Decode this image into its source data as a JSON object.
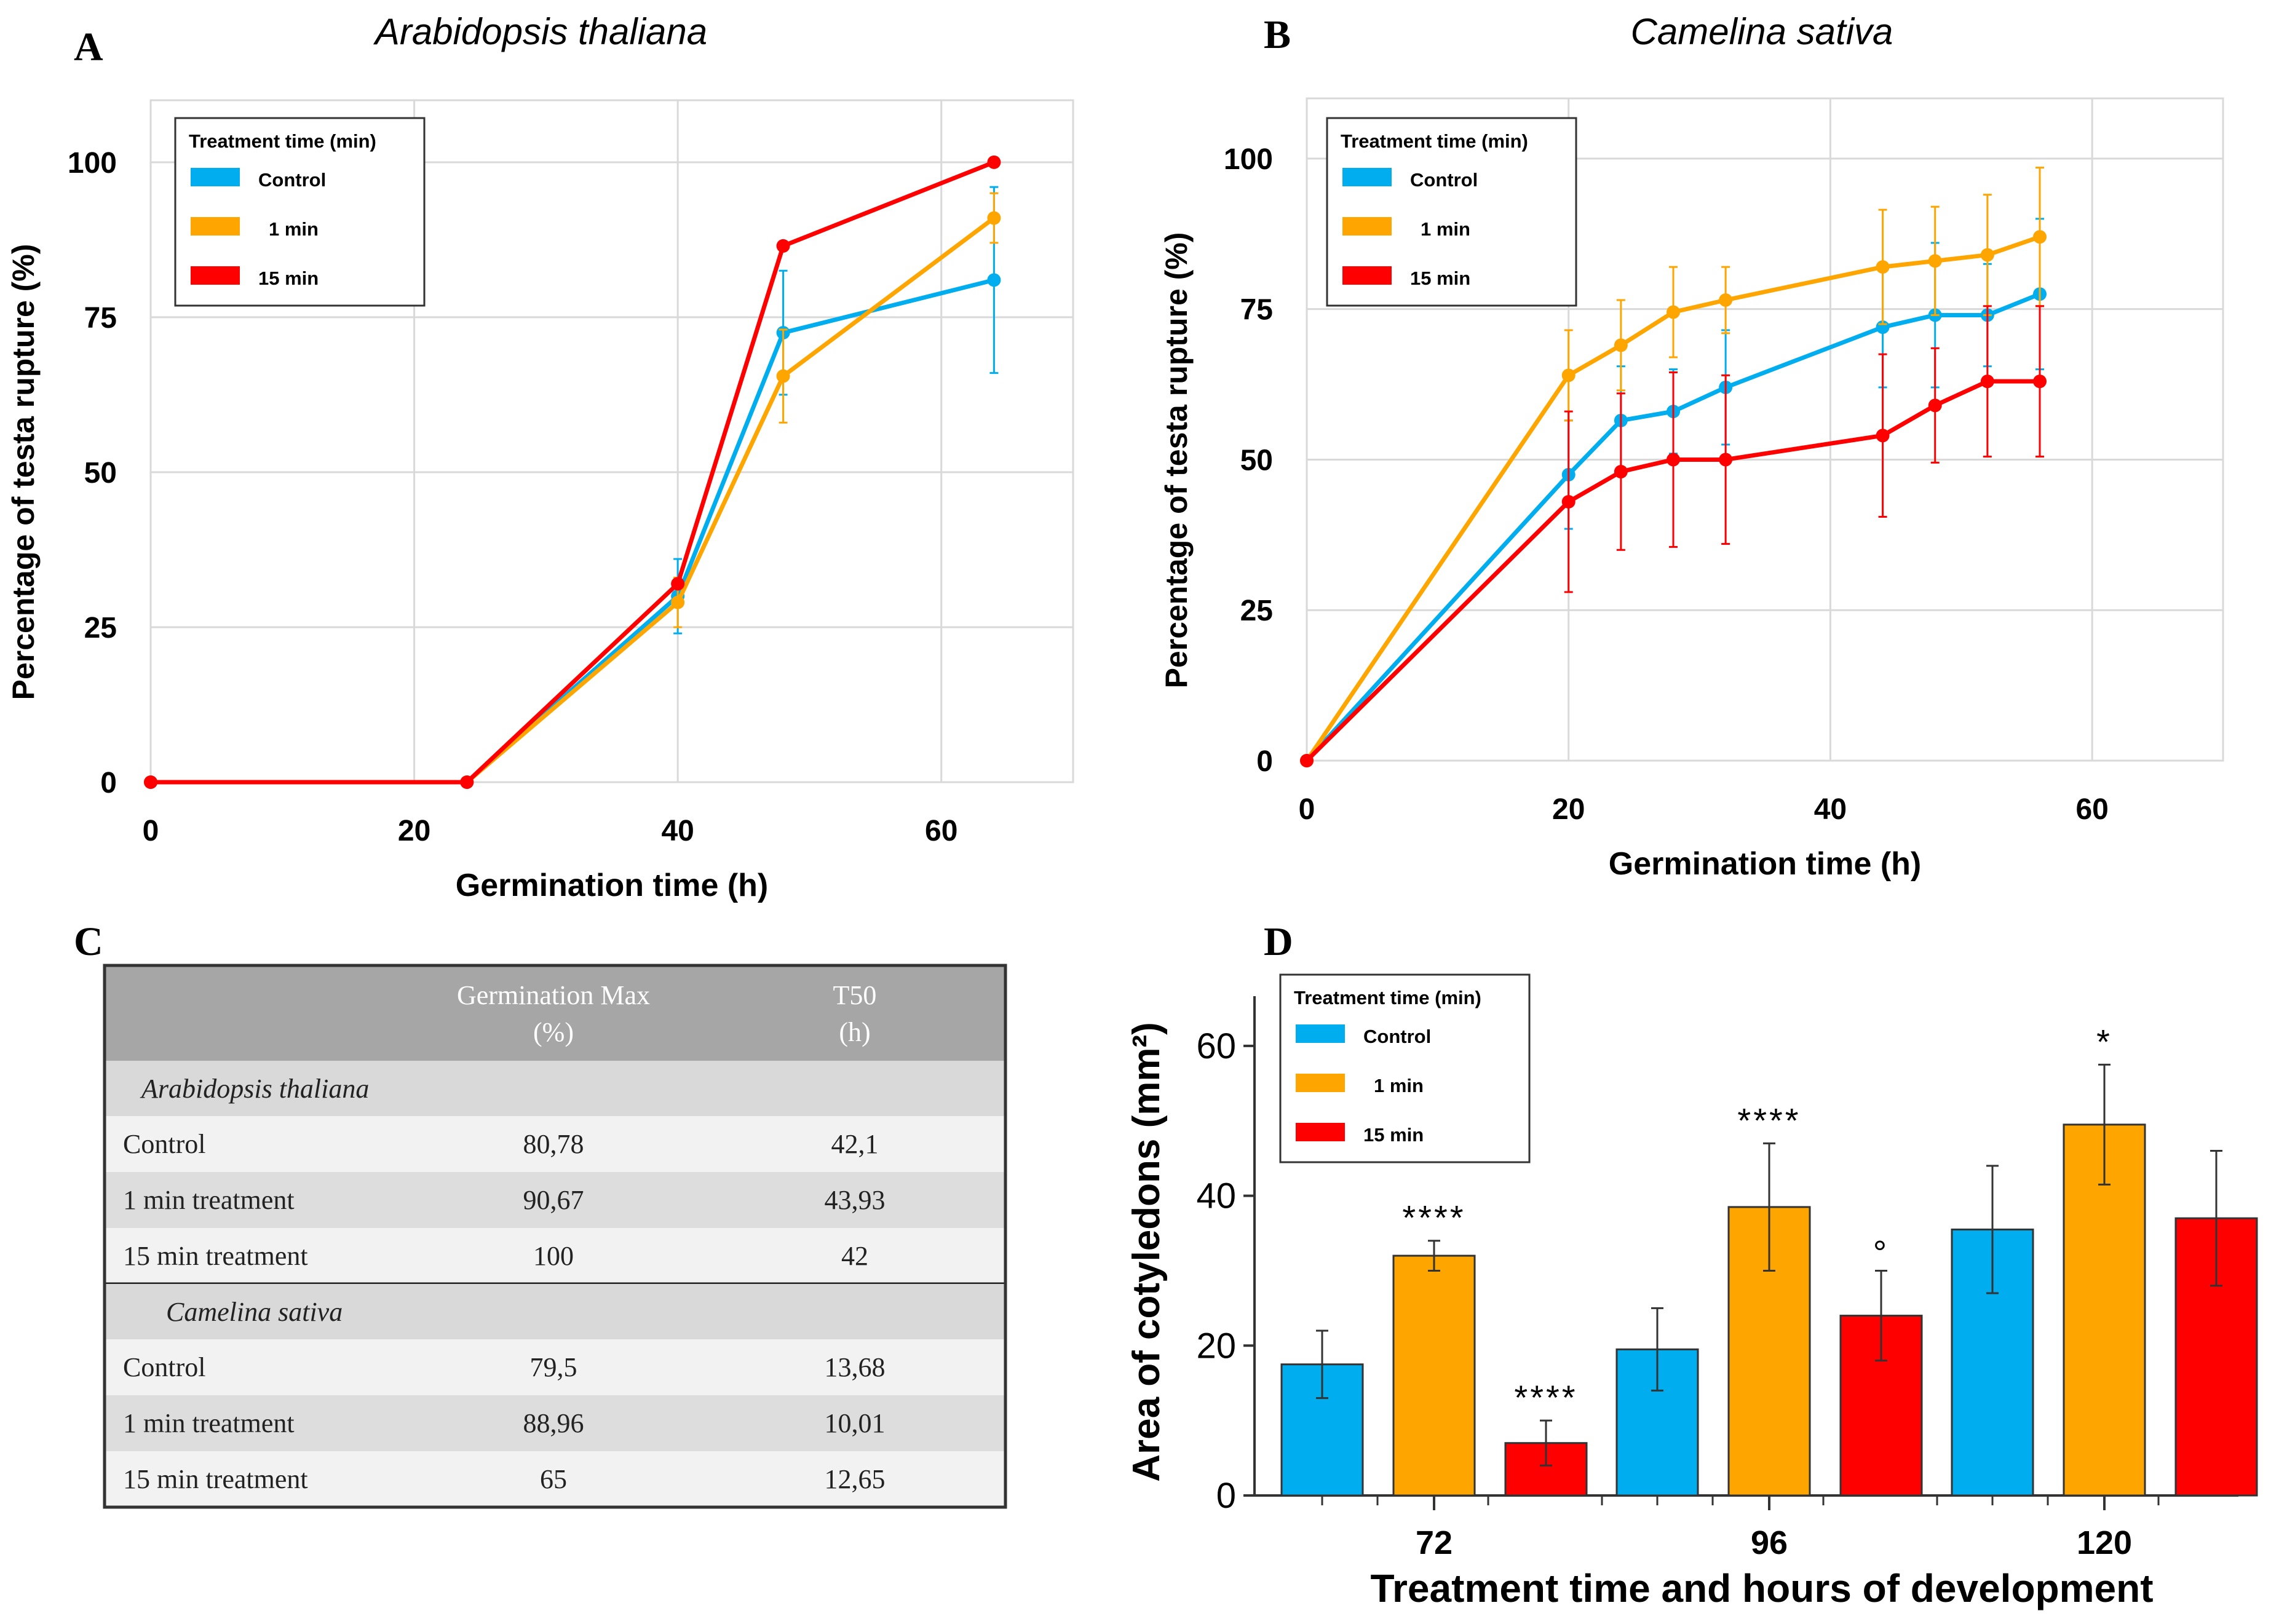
{
  "panels": {
    "A": {
      "letter": "A",
      "title": "Arabidopsis thaliana"
    },
    "B": {
      "letter": "B",
      "title": "Camelina sativa"
    },
    "C": {
      "letter": "C"
    },
    "D": {
      "letter": "D"
    }
  },
  "colors": {
    "control": "#00AEEF",
    "one_min": "#FFA500",
    "fifteen_min": "#FF0000",
    "grid": "#D9D9D9",
    "axis": "#7F7F7F"
  },
  "legend": {
    "title": "Treatment time (min)",
    "entries": [
      "Control",
      "1 min",
      "15 min"
    ]
  },
  "chart_data": [
    {
      "type": "line",
      "panel": "A",
      "title": "Arabidopsis thaliana",
      "xlabel": "Germination time (h)",
      "ylabel": "Percentage of testa rupture (%)",
      "xlim": [
        0,
        70
      ],
      "ylim": [
        0,
        110
      ],
      "xticks": [
        0,
        20,
        40,
        60
      ],
      "yticks": [
        0,
        25,
        50,
        75,
        100
      ],
      "series": [
        {
          "name": "Control",
          "color": "#00AEEF",
          "x": [
            0,
            24,
            40,
            48,
            64
          ],
          "y": [
            0,
            0,
            30,
            72.5,
            81
          ],
          "err": [
            0,
            0,
            6,
            10,
            15
          ]
        },
        {
          "name": "1 min",
          "color": "#FFA500",
          "x": [
            0,
            24,
            40,
            48,
            64
          ],
          "y": [
            0,
            0,
            29,
            65.5,
            91
          ],
          "err": [
            0,
            0,
            4,
            7.5,
            4
          ]
        },
        {
          "name": "15 min",
          "color": "#FF0000",
          "x": [
            0,
            24,
            40,
            48,
            64
          ],
          "y": [
            0,
            0,
            32,
            86.5,
            100
          ],
          "err": [
            0,
            0,
            0,
            0,
            0
          ]
        }
      ]
    },
    {
      "type": "line",
      "panel": "B",
      "title": "Camelina sativa",
      "xlabel": "Germination time (h)",
      "ylabel": "Percentage of testa rupture (%)",
      "xlim": [
        0,
        70
      ],
      "ylim": [
        0,
        110
      ],
      "xticks": [
        0,
        20,
        40,
        60
      ],
      "yticks": [
        0,
        25,
        50,
        75,
        100
      ],
      "series": [
        {
          "name": "Control",
          "color": "#00AEEF",
          "x": [
            0,
            20,
            24,
            28,
            32,
            44,
            48,
            52,
            56
          ],
          "y": [
            0,
            47.5,
            56.5,
            58,
            62,
            72,
            74,
            74,
            77.5
          ],
          "err": [
            0,
            9,
            9,
            7,
            9.5,
            10,
            12,
            8.5,
            12.5
          ]
        },
        {
          "name": "1 min",
          "color": "#FFA500",
          "x": [
            0,
            20,
            24,
            28,
            32,
            44,
            48,
            52,
            56
          ],
          "y": [
            0,
            64,
            69,
            74.5,
            76.5,
            82,
            83,
            84,
            87
          ],
          "err": [
            0,
            7.5,
            7.5,
            7.5,
            5.5,
            9.5,
            9,
            10,
            11.5
          ]
        },
        {
          "name": "15 min",
          "color": "#FF0000",
          "x": [
            0,
            20,
            24,
            28,
            32,
            44,
            48,
            52,
            56
          ],
          "y": [
            0,
            43,
            48,
            50,
            50,
            54,
            59,
            63,
            63
          ],
          "err": [
            0,
            15,
            13,
            14.5,
            14,
            13.5,
            9.5,
            12.5,
            12.5
          ]
        }
      ]
    },
    {
      "type": "table",
      "panel": "C",
      "columns": [
        "",
        "Germination Max\n(%)",
        "T50\n(h)"
      ],
      "column_line1": [
        "",
        "Germination Max",
        "T50"
      ],
      "column_line2": [
        "",
        "(%)",
        "(h)"
      ],
      "sections": [
        {
          "name": "Arabidopsis thaliana",
          "rows": [
            [
              "Control",
              "80,78",
              "42,1"
            ],
            [
              "1 min treatment",
              "90,67",
              "43,93"
            ],
            [
              "15 min treatment",
              "100",
              "42"
            ]
          ]
        },
        {
          "name": "Camelina sativa",
          "rows": [
            [
              "Control",
              "79,5",
              "13,68"
            ],
            [
              "1 min treatment",
              "88,96",
              "10,01"
            ],
            [
              "15 min treatment",
              "65",
              "12,65"
            ]
          ]
        }
      ]
    },
    {
      "type": "bar",
      "panel": "D",
      "xlabel": "Treatment time and hours of development",
      "ylabel": "Area of cotyledons (mm²)",
      "ylim": [
        0,
        65
      ],
      "yticks": [
        0,
        20,
        40,
        60
      ],
      "categories": [
        "72",
        "96",
        "120"
      ],
      "series": [
        {
          "name": "Control",
          "color": "#00AEEF",
          "values": [
            17.5,
            19.5,
            35.5
          ],
          "err": [
            4.5,
            5.5,
            8.5
          ],
          "annotations": [
            "",
            "",
            ""
          ]
        },
        {
          "name": "1 min",
          "color": "#FFA500",
          "values": [
            32,
            38.5,
            49.5
          ],
          "err": [
            2,
            8.5,
            8
          ],
          "annotations": [
            "****",
            "****",
            "*"
          ]
        },
        {
          "name": "15 min",
          "color": "#FF0000",
          "values": [
            7,
            24,
            37
          ],
          "err": [
            3,
            6,
            9
          ],
          "annotations": [
            "****",
            "°",
            ""
          ]
        }
      ]
    }
  ]
}
